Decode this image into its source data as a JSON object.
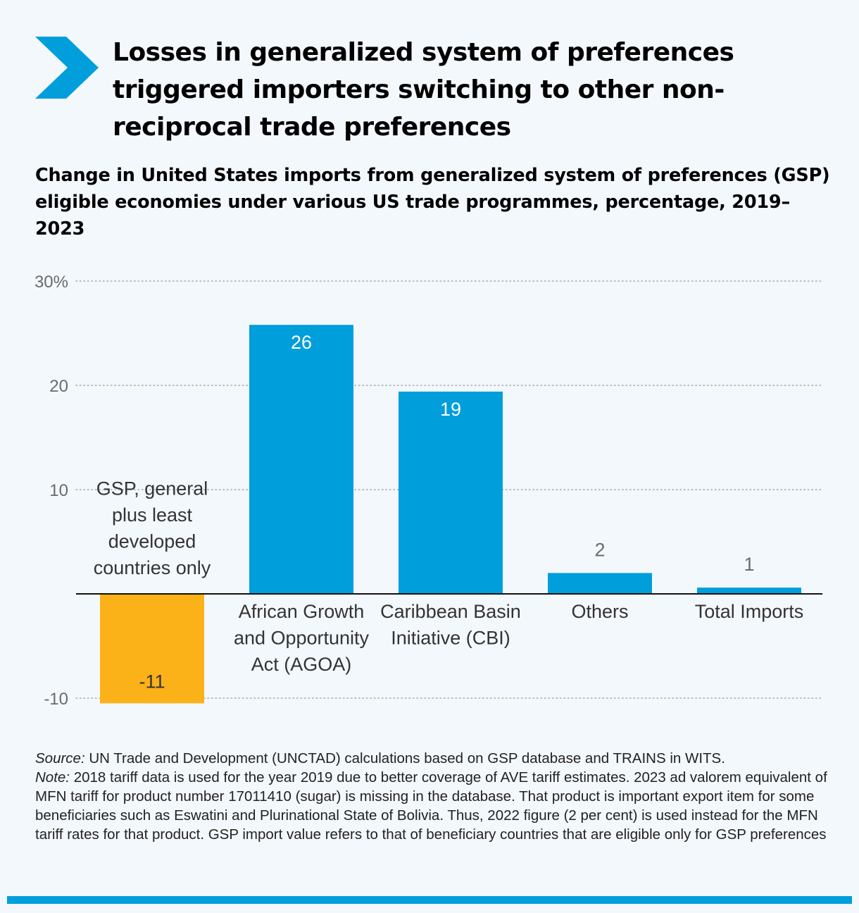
{
  "title": "Losses in generalized system of preferences triggered importers switching to other non-reciprocal trade preferences",
  "subtitle": "Change in United States imports from generalized system of preferences (GSP) eligible economies under various US trade programmes, percentage, 2019–2023",
  "colors": {
    "accent": "#009edb",
    "positive_bar": "#009edb",
    "negative_bar": "#fbb118",
    "background": "#f3f8fc"
  },
  "icons": {
    "header": "chevron-right-icon"
  },
  "chart_data": {
    "type": "bar",
    "categories": [
      [
        "GSP, general",
        "plus least",
        "developed",
        "countries only"
      ],
      [
        "African Growth",
        "and Opportunity",
        "Act (AGOA)"
      ],
      [
        "Caribbean Basin",
        "Initiative (CBI)"
      ],
      [
        "Others"
      ],
      [
        "Total Imports"
      ]
    ],
    "values": [
      -10.5,
      25.8,
      19.4,
      2,
      0.6
    ],
    "value_labels": [
      "-11",
      "26",
      "19",
      "2",
      "1"
    ],
    "ylim": [
      -10,
      30
    ],
    "yticks": [
      30,
      20,
      10,
      -10
    ],
    "ytick_labels": [
      "30%",
      "20",
      "10",
      "-10"
    ],
    "grid": true,
    "xlabel": "",
    "ylabel": ""
  },
  "footnote": {
    "source_label": "Source:",
    "source_text": " UN Trade and Development (UNCTAD) calculations based on GSP database and TRAINS in WITS.",
    "note_label": "Note:",
    "note_text": " 2018 tariff data is used for the year 2019 due to better coverage of AVE tariff estimates. 2023 ad valorem equivalent of MFN tariff for product number 17011410 (sugar) is missing in the database. That product is important export item for some beneficiaries such as Eswatini and Plurinational State of Bolivia. Thus, 2022 figure (2 per cent) is used instead for the MFN tariff rates for that product. GSP import value refers to that of beneficiary countries that are eligible only for GSP preferences"
  }
}
